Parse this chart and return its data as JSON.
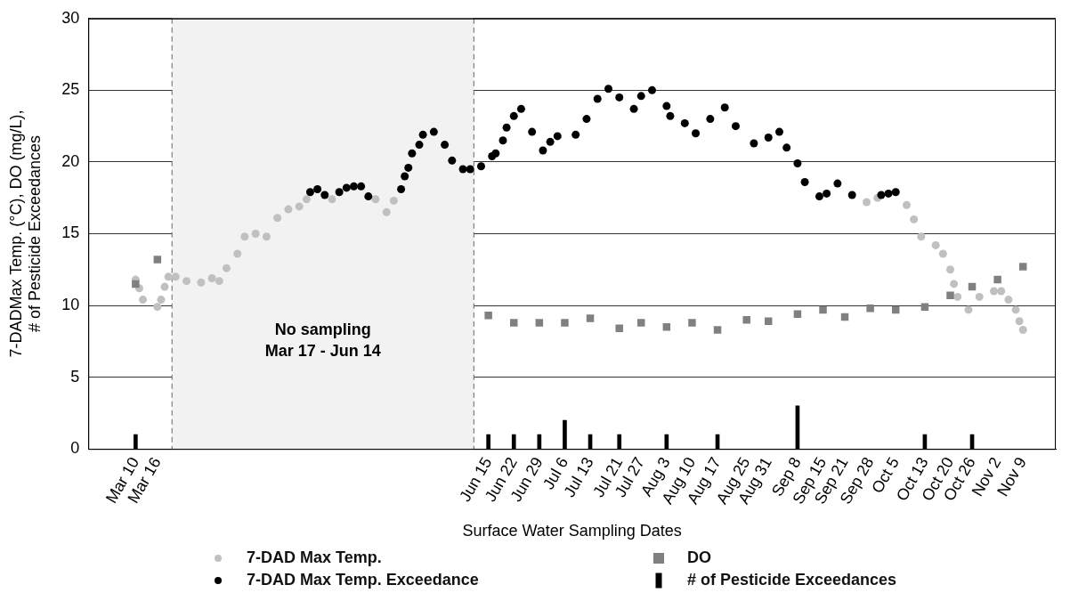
{
  "chart_data": {
    "type": "scatter",
    "xlabel": "Surface Water Sampling Dates",
    "ylabel": "7-DADMax Temp. (°C), DO (mg/L),\n# of Pesticide Exceedances",
    "xlim": [
      "--02-25",
      "--11-18"
    ],
    "xticks": [
      {
        "value": "--03-10",
        "label": "Mar 10"
      },
      {
        "value": "--03-16",
        "label": "Mar 16"
      },
      {
        "value": "--06-15",
        "label": "Jun 15"
      },
      {
        "value": "--06-22",
        "label": "Jun 22"
      },
      {
        "value": "--06-29",
        "label": "Jun 29"
      },
      {
        "value": "--07-06",
        "label": "Jul 6"
      },
      {
        "value": "--07-13",
        "label": "Jul 13"
      },
      {
        "value": "--07-21",
        "label": "Jul 21"
      },
      {
        "value": "--07-27",
        "label": "Jul 27"
      },
      {
        "value": "--08-03",
        "label": "Aug 3"
      },
      {
        "value": "--08-10",
        "label": "Aug 10"
      },
      {
        "value": "--08-17",
        "label": "Aug 17"
      },
      {
        "value": "--08-25",
        "label": "Aug 25"
      },
      {
        "value": "--08-31",
        "label": "Aug 31"
      },
      {
        "value": "--09-08",
        "label": "Sep 8"
      },
      {
        "value": "--09-15",
        "label": "Sep 15"
      },
      {
        "value": "--09-21",
        "label": "Sep 21"
      },
      {
        "value": "--09-28",
        "label": "Sep 28"
      },
      {
        "value": "--10-05",
        "label": "Oct 5"
      },
      {
        "value": "--10-13",
        "label": "Oct 13"
      },
      {
        "value": "--10-20",
        "label": "Oct 20"
      },
      {
        "value": "--10-26",
        "label": "Oct 26"
      },
      {
        "value": "--11-02",
        "label": "Nov 2"
      },
      {
        "value": "--11-09",
        "label": "Nov 9"
      }
    ],
    "ylim": [
      0,
      30
    ],
    "yticks": [
      0,
      5,
      10,
      15,
      20,
      25,
      30
    ],
    "grid": "y",
    "legend": "bottom",
    "bands": [
      {
        "axis": "x",
        "from": "--03-20",
        "to": "--06-11",
        "label": "No sampling\nMar 17 - Jun 14",
        "color": "#f2f2f2"
      }
    ],
    "ref_lines": [
      {
        "axis": "x",
        "value": "--03-20",
        "color": "#666666",
        "line_style": "dashed"
      },
      {
        "axis": "x",
        "value": "--06-11",
        "color": "#666666",
        "line_style": "dashed"
      }
    ],
    "series": [
      {
        "name": "7-DAD Max Temp.",
        "marker": "circle",
        "color": "#c0c0c0",
        "x": [
          "--03-10",
          "--03-11",
          "--03-12",
          "--03-16",
          "--03-17",
          "--03-18",
          "--03-19",
          "--03-21",
          "--03-24",
          "--03-28",
          "--03-31",
          "--04-02",
          "--04-04",
          "--04-07",
          "--04-09",
          "--04-12",
          "--04-15",
          "--04-18",
          "--04-21",
          "--04-24",
          "--04-26",
          "--05-03",
          "--05-15",
          "--05-18",
          "--05-20",
          "--09-27",
          "--09-30",
          "--10-08",
          "--10-10",
          "--10-12",
          "--10-16",
          "--10-18",
          "--10-20",
          "--10-21",
          "--10-22",
          "--10-25",
          "--10-28",
          "--11-01",
          "--11-03",
          "--11-05",
          "--11-07",
          "--11-08",
          "--11-09"
        ],
        "values": [
          11.8,
          11.2,
          10.4,
          9.9,
          10.4,
          11.3,
          12.0,
          12.0,
          11.7,
          11.6,
          11.9,
          11.7,
          12.6,
          13.6,
          14.8,
          15.0,
          14.8,
          16.1,
          16.7,
          16.9,
          17.4,
          17.4,
          17.4,
          16.5,
          17.3,
          17.2,
          17.5,
          17.0,
          16.0,
          14.8,
          14.2,
          13.6,
          12.5,
          11.5,
          10.6,
          9.7,
          10.6,
          11.0,
          11.0,
          10.4,
          9.7,
          8.9,
          8.3
        ]
      },
      {
        "name": "7-DAD Max Temp. Exceedance",
        "marker": "circle",
        "color": "#000000",
        "x": [
          "--04-27",
          "--04-29",
          "--05-01",
          "--05-05",
          "--05-07",
          "--05-09",
          "--05-11",
          "--05-13",
          "--05-22",
          "--05-23",
          "--05-24",
          "--05-25",
          "--05-27",
          "--05-28",
          "--05-31",
          "--06-03",
          "--06-05",
          "--06-08",
          "--06-10",
          "--06-13",
          "--06-16",
          "--06-17",
          "--06-19",
          "--06-20",
          "--06-22",
          "--06-24",
          "--06-27",
          "--06-30",
          "--07-02",
          "--07-04",
          "--07-09",
          "--07-12",
          "--07-15",
          "--07-18",
          "--07-21",
          "--07-25",
          "--07-27",
          "--07-30",
          "--08-03",
          "--08-04",
          "--08-08",
          "--08-11",
          "--08-15",
          "--08-19",
          "--08-22",
          "--08-27",
          "--08-31",
          "--09-03",
          "--09-05",
          "--09-08",
          "--09-10",
          "--09-14",
          "--09-16",
          "--09-19",
          "--09-23",
          "--10-01",
          "--10-03",
          "--10-05"
        ],
        "values": [
          17.9,
          18.1,
          17.7,
          17.9,
          18.2,
          18.3,
          18.3,
          17.6,
          18.1,
          19.0,
          19.6,
          20.6,
          21.2,
          21.9,
          22.1,
          21.2,
          20.1,
          19.5,
          19.5,
          19.7,
          20.4,
          20.6,
          21.5,
          22.4,
          23.2,
          23.7,
          22.1,
          20.8,
          21.4,
          21.8,
          21.9,
          23.0,
          24.4,
          25.1,
          24.5,
          23.7,
          24.6,
          25.0,
          23.9,
          23.2,
          22.7,
          22.0,
          23.0,
          23.8,
          22.5,
          21.3,
          21.7,
          22.1,
          21.0,
          19.9,
          18.6,
          17.6,
          17.8,
          18.5,
          17.7,
          17.7,
          17.8,
          17.9
        ]
      },
      {
        "name": "DO",
        "marker": "square",
        "color": "#808080",
        "x": [
          "--03-10",
          "--03-16",
          "--06-15",
          "--06-22",
          "--06-29",
          "--07-06",
          "--07-13",
          "--07-21",
          "--07-27",
          "--08-03",
          "--08-10",
          "--08-17",
          "--08-25",
          "--08-31",
          "--09-08",
          "--09-15",
          "--09-21",
          "--09-28",
          "--10-05",
          "--10-13",
          "--10-20",
          "--10-26",
          "--11-02",
          "--11-09"
        ],
        "values": [
          11.5,
          13.2,
          9.3,
          8.8,
          8.8,
          8.8,
          9.1,
          8.4,
          8.8,
          8.5,
          8.8,
          8.3,
          9.0,
          8.9,
          9.4,
          9.7,
          9.2,
          9.8,
          9.7,
          9.9,
          10.7,
          11.3,
          11.8,
          12.7
        ]
      },
      {
        "name": "# of Pesticide Exceedances",
        "type": "bar",
        "color": "#000000",
        "x": [
          "--03-10",
          "--06-15",
          "--06-22",
          "--06-29",
          "--07-06",
          "--07-13",
          "--07-21",
          "--08-03",
          "--08-17",
          "--09-08",
          "--10-13",
          "--10-26"
        ],
        "values": [
          1,
          1,
          1,
          1,
          2,
          1,
          1,
          1,
          1,
          3,
          1,
          1
        ]
      }
    ]
  }
}
